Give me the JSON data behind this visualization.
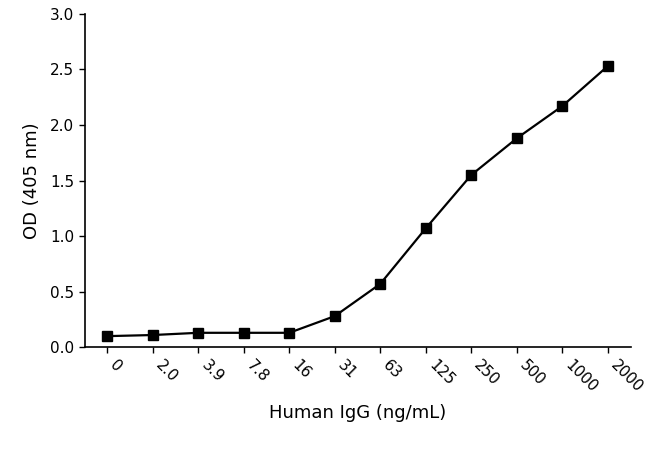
{
  "x_labels": [
    "0",
    "2.0",
    "3.9",
    "7.8",
    "16",
    "31",
    "63",
    "125",
    "250",
    "500",
    "1000",
    "2000"
  ],
  "x_positions": [
    0,
    1,
    2,
    3,
    4,
    5,
    6,
    7,
    8,
    9,
    10,
    11
  ],
  "y_values": [
    0.1,
    0.11,
    0.13,
    0.13,
    0.13,
    0.28,
    0.57,
    1.07,
    1.55,
    1.88,
    2.17,
    2.53
  ],
  "ylabel": "OD (405 nm)",
  "xlabel": "Human IgG (ng/mL)",
  "ylim": [
    0.0,
    3.0
  ],
  "yticks": [
    0.0,
    0.5,
    1.0,
    1.5,
    2.0,
    2.5,
    3.0
  ],
  "ytick_labels": [
    "0.0",
    "0.5",
    "1.0",
    "1.5",
    "2.0",
    "2.5",
    "3.0"
  ],
  "line_color": "#000000",
  "marker": "s",
  "marker_size": 7,
  "marker_color": "#000000",
  "line_width": 1.6,
  "background_color": "#ffffff",
  "xlabel_fontsize": 13,
  "ylabel_fontsize": 13,
  "tick_fontsize": 11
}
